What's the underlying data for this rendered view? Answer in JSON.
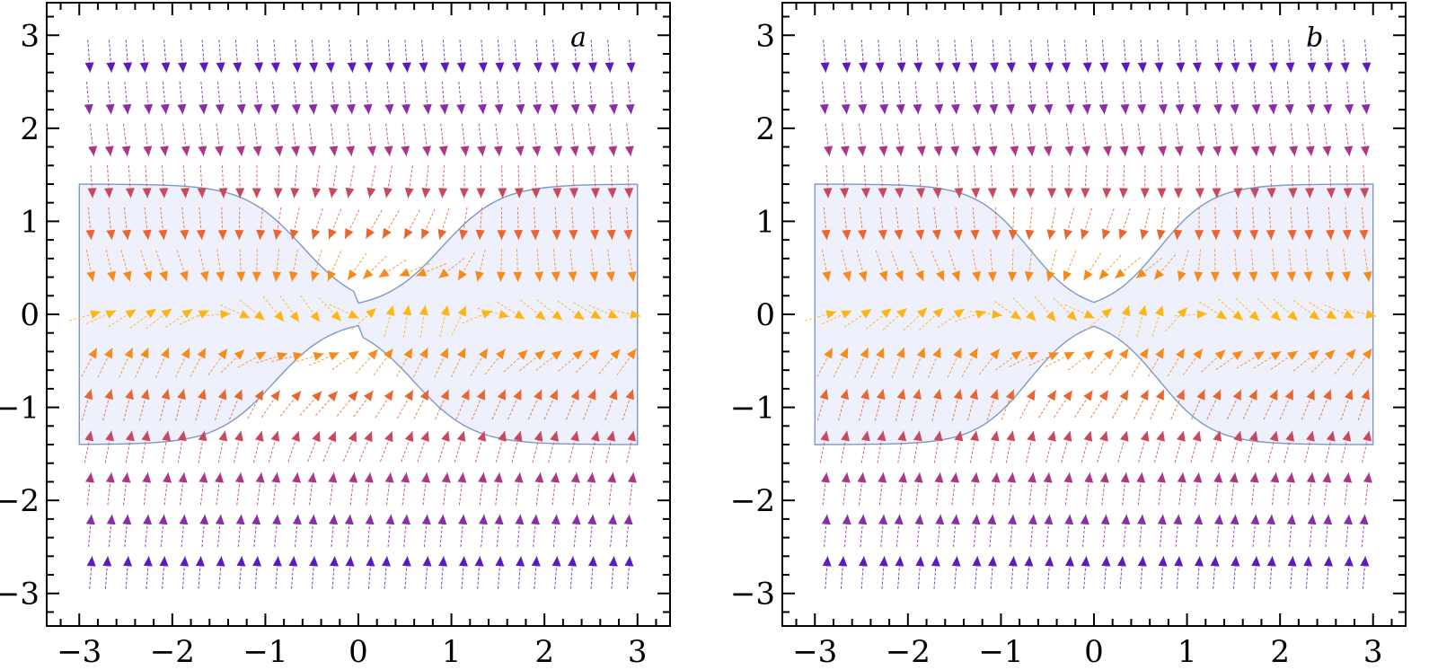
{
  "chart_data": [
    {
      "type": "stream-plot",
      "panel_label": "a",
      "xlim": [
        -3.35,
        3.35
      ],
      "ylim": [
        -3.35,
        3.35
      ],
      "xticks": [
        -3,
        -2,
        -1,
        0,
        1,
        2,
        3
      ],
      "yticks": [
        -3,
        -2,
        -1,
        0,
        1,
        2,
        3
      ],
      "xtick_labels": [
        "−3",
        "−2",
        "−1",
        "0",
        "1",
        "2",
        "3"
      ],
      "ytick_labels": [
        "−3",
        "−2",
        "−1",
        "0",
        "1",
        "2",
        "3"
      ],
      "region": {
        "description": "shaded band between two sigmoid boundary curves",
        "x_range": [
          -3,
          3
        ],
        "upper_boundary_at_x_-3": 1.4,
        "upper_boundary_at_x_3": 1.4,
        "lower_boundary_at_x_-3": -1.4,
        "lower_boundary_at_x_3": -1.4,
        "center_gap": [
          -0.3,
          0.3
        ],
        "fill": "#eef0fc",
        "stroke": "#7d98c8"
      },
      "colormap": [
        "#ffb412",
        "#f07024",
        "#c23d6a",
        "#8a2da8",
        "#3c0fd0"
      ],
      "arrow_grid_x": [
        -2.9,
        -2.7,
        -2.5,
        -2.3,
        -2.1,
        -1.9,
        -1.7,
        -1.5,
        -1.3,
        -1.1,
        -0.9,
        -0.7,
        -0.5,
        -0.3,
        -0.1,
        0.1,
        0.3,
        0.5,
        0.7,
        0.9,
        1.1,
        1.3,
        1.5,
        1.7,
        1.9,
        2.1,
        2.3,
        2.5,
        2.7,
        2.9
      ],
      "arrow_grid_y": [
        -2.7,
        -2.25,
        -1.8,
        -1.35,
        -0.9,
        -0.45,
        0.0,
        0.45,
        0.9,
        1.35,
        1.8,
        2.25,
        2.7
      ]
    },
    {
      "type": "stream-plot",
      "panel_label": "b",
      "xlim": [
        -3.35,
        3.35
      ],
      "ylim": [
        -3.35,
        3.35
      ],
      "xticks": [
        -3,
        -2,
        -1,
        0,
        1,
        2,
        3
      ],
      "yticks": [
        -3,
        -2,
        -1,
        0,
        1,
        2,
        3
      ],
      "xtick_labels": [
        "−3",
        "−2",
        "−1",
        "0",
        "1",
        "2",
        "3"
      ],
      "ytick_labels": [
        "−3",
        "−2",
        "−1",
        "0",
        "1",
        "2",
        "3"
      ],
      "region": {
        "description": "shaded band between two sigmoid boundary curves touching near origin",
        "x_range": [
          -3,
          3
        ],
        "upper_boundary_at_x_-3": 1.4,
        "upper_boundary_at_x_3": 1.4,
        "lower_boundary_at_x_-3": -1.4,
        "lower_boundary_at_x_3": -1.4,
        "center_gap": [
          -0.05,
          0.05
        ],
        "fill": "#eef0fc",
        "stroke": "#7d98c8"
      },
      "colormap": [
        "#ffb412",
        "#f07024",
        "#c23d6a",
        "#8a2da8",
        "#3c0fd0"
      ],
      "arrow_grid_x": [
        -2.9,
        -2.7,
        -2.5,
        -2.3,
        -2.1,
        -1.9,
        -1.7,
        -1.5,
        -1.3,
        -1.1,
        -0.9,
        -0.7,
        -0.5,
        -0.3,
        -0.1,
        0.1,
        0.3,
        0.5,
        0.7,
        0.9,
        1.1,
        1.3,
        1.5,
        1.7,
        1.9,
        2.1,
        2.3,
        2.5,
        2.7,
        2.9
      ],
      "arrow_grid_y": [
        -2.7,
        -2.25,
        -1.8,
        -1.35,
        -0.9,
        -0.45,
        0.0,
        0.45,
        0.9,
        1.35,
        1.8,
        2.25,
        2.7
      ]
    }
  ]
}
